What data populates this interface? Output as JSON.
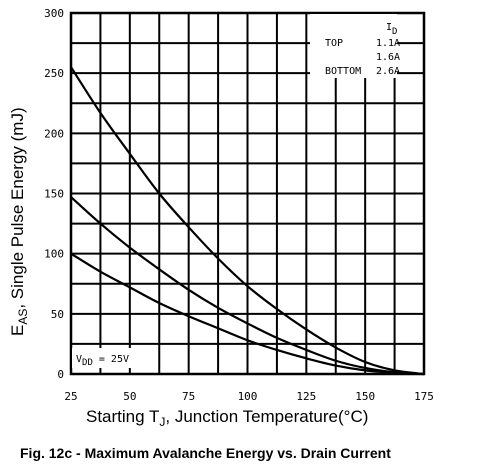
{
  "chart_data": {
    "type": "line",
    "title": "Fig. 12c - Maximum Avalanche Energy vs. Drain Current",
    "xlabel_parts": [
      "Starting T",
      "J",
      ", Junction Temperature(°C)"
    ],
    "ylabel_parts": [
      "E",
      "AS",
      ", Single Pulse Energy (mJ)"
    ],
    "xlim": [
      25,
      175
    ],
    "ylim": [
      0,
      300
    ],
    "x_ticks": [
      25,
      50,
      75,
      100,
      125,
      150,
      175
    ],
    "y_ticks": [
      0,
      50,
      100,
      150,
      200,
      250,
      300
    ],
    "grid": true,
    "legend": {
      "header": "I",
      "header_sub": "D",
      "rows": [
        {
          "label": "TOP",
          "value": "1.1A"
        },
        {
          "label": "",
          "value": "1.6A"
        },
        {
          "label": "BOTTOM",
          "value": "2.6A"
        }
      ]
    },
    "annotation_parts": [
      "V",
      "DD",
      " = 25V"
    ],
    "x": [
      25,
      37.5,
      50,
      62.5,
      75,
      87.5,
      100,
      112.5,
      125,
      137.5,
      150,
      162.5,
      175
    ],
    "series": [
      {
        "values": [
          255,
          217,
          183,
          150,
          122,
          96,
          73,
          54,
          37,
          22,
          10,
          3,
          0
        ]
      },
      {
        "values": [
          147,
          125,
          105,
          87,
          70,
          55,
          42,
          30,
          20,
          11,
          5,
          1.5,
          0
        ]
      },
      {
        "values": [
          100,
          85,
          72,
          59,
          48,
          38,
          28,
          20,
          13,
          7,
          3,
          1,
          0
        ]
      }
    ]
  }
}
